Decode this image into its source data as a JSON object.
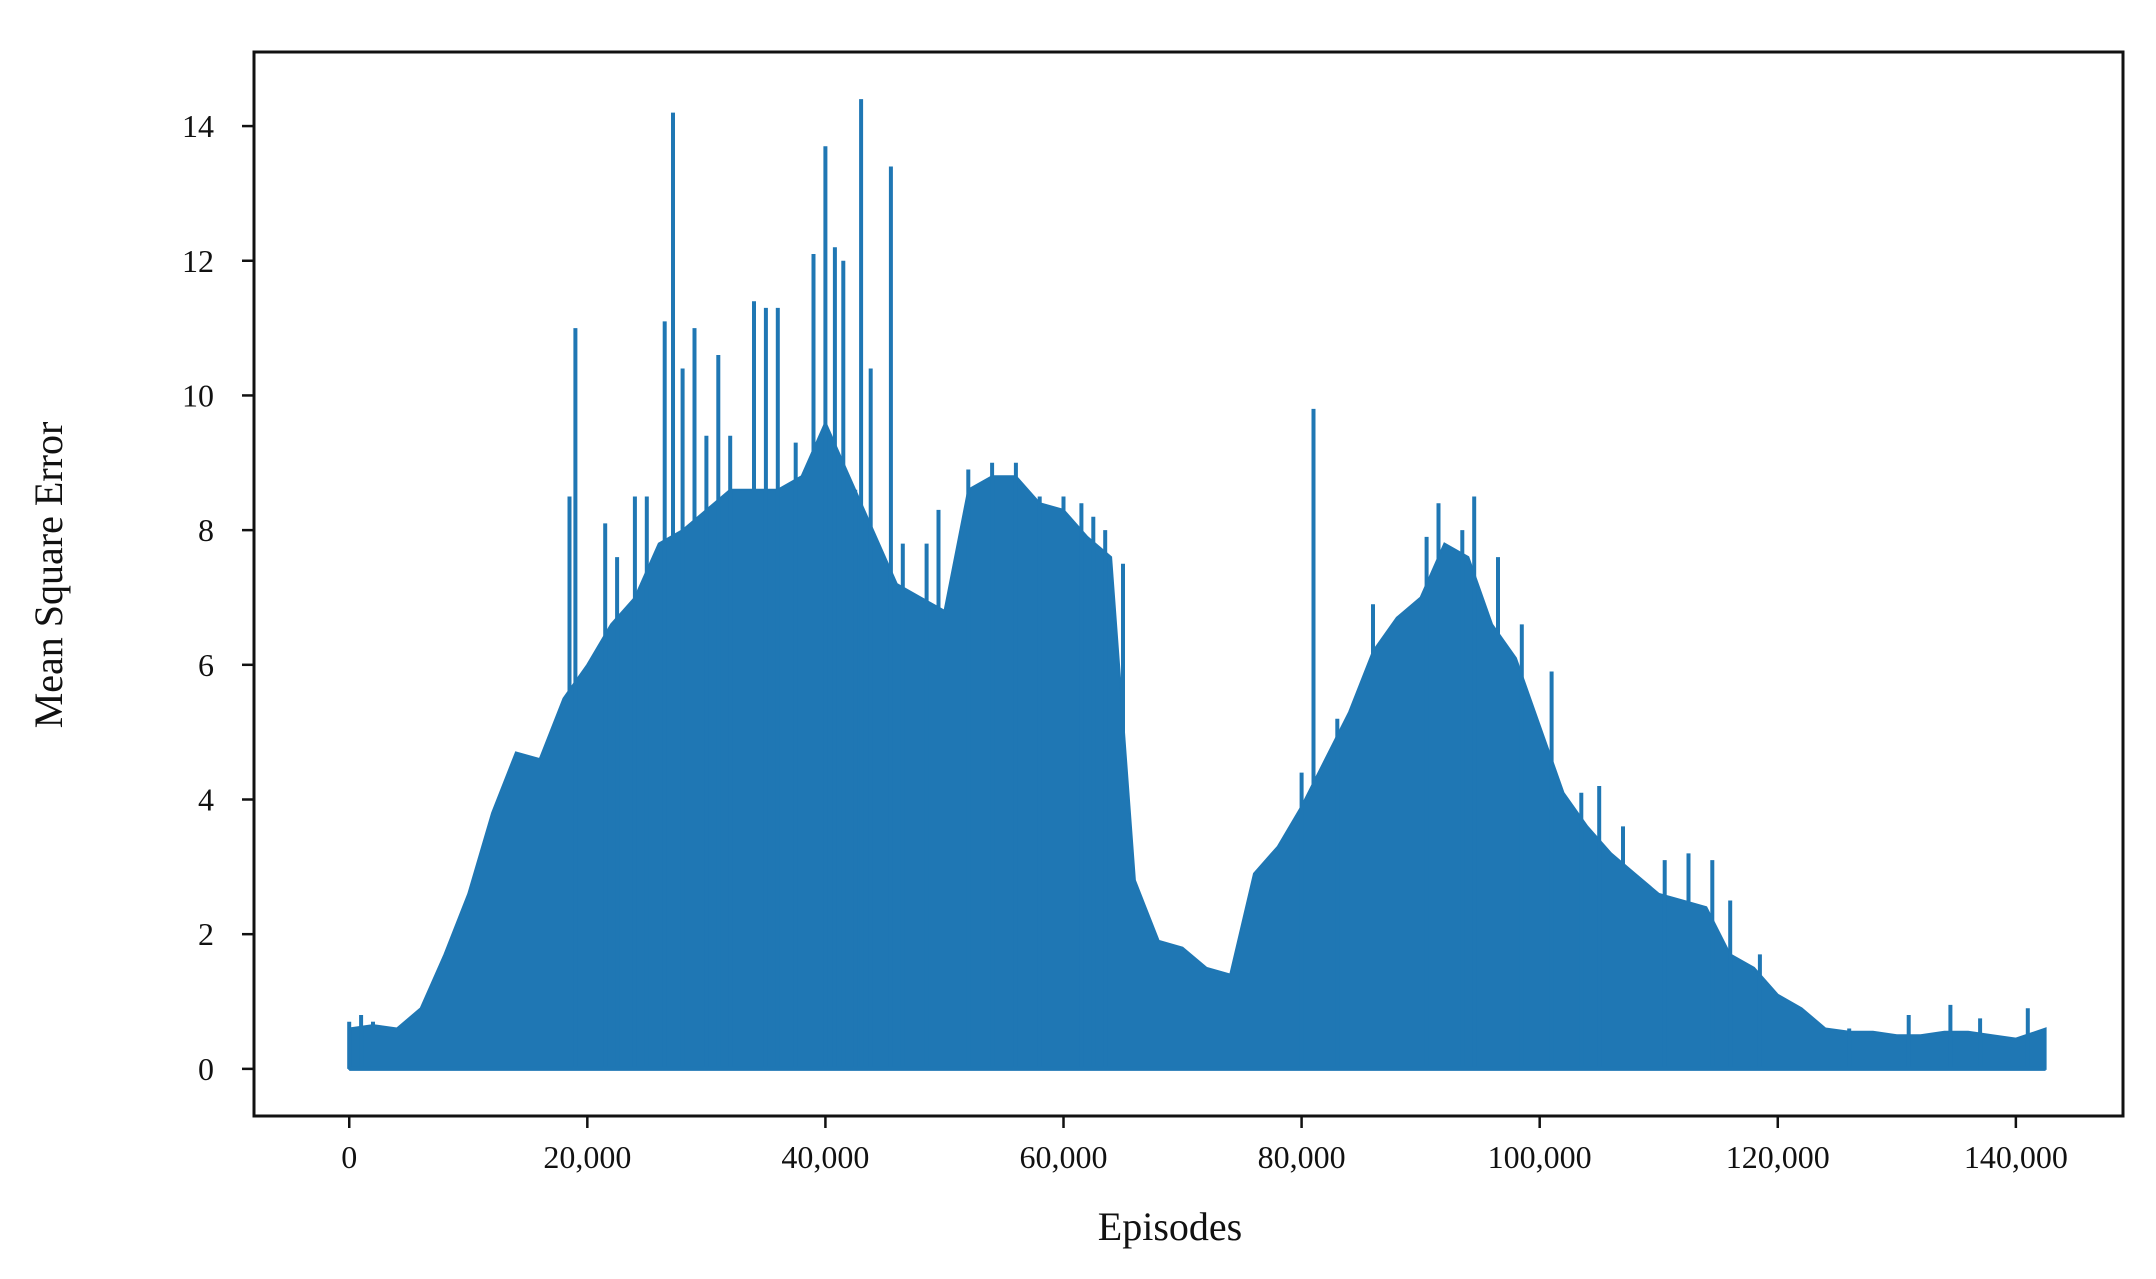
{
  "chart_data": {
    "type": "area",
    "xlabel": "Episodes",
    "ylabel": "Mean Square Error",
    "xlim": [
      -8000,
      149000
    ],
    "ylim": [
      -0.7,
      15.1
    ],
    "xticks": [
      0,
      20000,
      40000,
      60000,
      80000,
      100000,
      120000,
      140000
    ],
    "xtick_labels": [
      "0",
      "20,000",
      "40,000",
      "60,000",
      "80,000",
      "100,000",
      "120,000",
      "140,000"
    ],
    "yticks": [
      0,
      2,
      4,
      6,
      8,
      10,
      12,
      14
    ],
    "ytick_labels": [
      "0",
      "2",
      "4",
      "6",
      "8",
      "10",
      "12",
      "14"
    ],
    "grid": false,
    "series": [
      {
        "color": "#1f77b4",
        "x": [
          0,
          2000,
          4000,
          6000,
          8000,
          10000,
          12000,
          14000,
          16000,
          18000,
          20000,
          22000,
          24000,
          26000,
          28000,
          30000,
          32000,
          34000,
          36000,
          38000,
          40000,
          42000,
          44000,
          46000,
          48000,
          50000,
          52000,
          54000,
          56000,
          58000,
          60000,
          62000,
          64000,
          66000,
          68000,
          70000,
          72000,
          74000,
          76000,
          78000,
          80000,
          82000,
          84000,
          86000,
          88000,
          90000,
          92000,
          94000,
          96000,
          98000,
          100000,
          102000,
          104000,
          106000,
          108000,
          110000,
          112000,
          114000,
          116000,
          118000,
          120000,
          122000,
          124000,
          126000,
          128000,
          130000,
          132000,
          134000,
          136000,
          138000,
          140000,
          142500
        ],
        "envelope": [
          0.6,
          0.65,
          0.6,
          0.9,
          1.7,
          2.6,
          3.8,
          4.7,
          4.6,
          5.5,
          6.0,
          6.6,
          7.0,
          7.8,
          8.0,
          8.3,
          8.6,
          8.6,
          8.6,
          8.8,
          9.6,
          8.8,
          8.0,
          7.2,
          7.0,
          6.8,
          8.6,
          8.8,
          8.8,
          8.4,
          8.3,
          7.9,
          7.6,
          2.8,
          1.9,
          1.8,
          1.5,
          1.4,
          2.9,
          3.3,
          3.9,
          4.6,
          5.3,
          6.2,
          6.7,
          7.0,
          7.8,
          7.6,
          6.6,
          6.1,
          5.1,
          4.1,
          3.6,
          3.2,
          2.9,
          2.6,
          2.5,
          2.4,
          1.7,
          1.5,
          1.1,
          0.9,
          0.6,
          0.55,
          0.55,
          0.5,
          0.5,
          0.55,
          0.55,
          0.5,
          0.45,
          0.6
        ],
        "spikes": [
          [
            0,
            0.7
          ],
          [
            1000,
            0.8
          ],
          [
            2000,
            0.7
          ],
          [
            18500,
            8.5
          ],
          [
            19000,
            11.0
          ],
          [
            21500,
            8.1
          ],
          [
            22500,
            7.6
          ],
          [
            24000,
            8.5
          ],
          [
            25000,
            8.5
          ],
          [
            26500,
            11.1
          ],
          [
            27200,
            14.2
          ],
          [
            28000,
            10.4
          ],
          [
            29000,
            11.0
          ],
          [
            30000,
            9.4
          ],
          [
            31000,
            10.6
          ],
          [
            32000,
            9.4
          ],
          [
            34000,
            11.4
          ],
          [
            35000,
            11.3
          ],
          [
            36000,
            11.3
          ],
          [
            37500,
            9.3
          ],
          [
            39000,
            12.1
          ],
          [
            40000,
            13.7
          ],
          [
            40800,
            12.2
          ],
          [
            41500,
            12.0
          ],
          [
            42500,
            8.6
          ],
          [
            43000,
            14.4
          ],
          [
            43800,
            10.4
          ],
          [
            45500,
            13.4
          ],
          [
            46500,
            7.8
          ],
          [
            48500,
            7.8
          ],
          [
            49500,
            8.3
          ],
          [
            52000,
            8.9
          ],
          [
            54000,
            9.0
          ],
          [
            56000,
            9.0
          ],
          [
            58000,
            8.5
          ],
          [
            60000,
            8.5
          ],
          [
            61500,
            8.4
          ],
          [
            62500,
            8.2
          ],
          [
            63500,
            8.0
          ],
          [
            65000,
            7.5
          ],
          [
            80000,
            4.4
          ],
          [
            81000,
            9.8
          ],
          [
            83000,
            5.2
          ],
          [
            86000,
            6.9
          ],
          [
            90500,
            7.9
          ],
          [
            91500,
            8.4
          ],
          [
            93500,
            8.0
          ],
          [
            94500,
            8.5
          ],
          [
            96500,
            7.6
          ],
          [
            98500,
            6.6
          ],
          [
            101000,
            5.9
          ],
          [
            103500,
            4.1
          ],
          [
            105000,
            4.2
          ],
          [
            107000,
            3.6
          ],
          [
            110500,
            3.1
          ],
          [
            112500,
            3.2
          ],
          [
            114500,
            3.1
          ],
          [
            116000,
            2.5
          ],
          [
            118500,
            1.7
          ],
          [
            126000,
            0.6
          ],
          [
            131000,
            0.8
          ],
          [
            134500,
            0.95
          ],
          [
            137000,
            0.75
          ],
          [
            141000,
            0.9
          ]
        ]
      }
    ]
  }
}
